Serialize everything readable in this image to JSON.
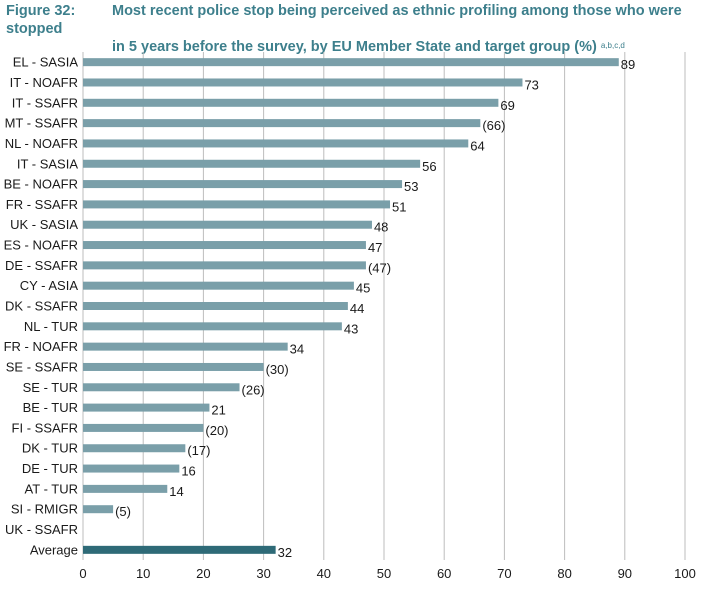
{
  "title": {
    "figure_label": "Figure 32:",
    "line1": "Most recent police stop being perceived as ethnic profiling among those who were stopped",
    "line2": "in 5 years before the survey, by EU Member State and target group (%)",
    "superscript": "a,b,c,d"
  },
  "chart_data": {
    "type": "bar",
    "orientation": "horizontal",
    "xlim": [
      0,
      100
    ],
    "x_ticks": [
      "0",
      "10",
      "20",
      "30",
      "40",
      "50",
      "60",
      "70",
      "80",
      "90",
      "100"
    ],
    "grid": "vertical",
    "colors": {
      "bar": "#7a9fa9",
      "average_bar": "#2e6a77"
    },
    "categories": [
      "EL - SASIA",
      "IT - NOAFR",
      "IT - SSAFR",
      "MT - SSAFR",
      "NL - NOAFR",
      "IT - SASIA",
      "BE - NOAFR",
      "FR - SSAFR",
      "UK - SASIA",
      "ES - NOAFR",
      "DE - SSAFR",
      "CY - ASIA",
      "DK - SSAFR",
      "NL - TUR",
      "FR - NOAFR",
      "SE - SSAFR",
      "SE - TUR",
      "BE - TUR",
      "FI - SSAFR",
      "DK - TUR",
      "DE - TUR",
      "AT - TUR",
      "SI - RMIGR",
      "UK - SSAFR",
      "Average"
    ],
    "values": [
      89,
      73,
      69,
      66,
      64,
      56,
      53,
      51,
      48,
      47,
      47,
      45,
      44,
      43,
      34,
      30,
      26,
      21,
      20,
      17,
      16,
      14,
      5,
      null,
      32
    ],
    "labels": [
      "89",
      "73",
      "69",
      "(66)",
      "64",
      "56",
      "53",
      "51",
      "48",
      "47",
      "(47)",
      "45",
      "44",
      "43",
      "34",
      "(30)",
      "(26)",
      "21",
      "(20)",
      "(17)",
      "16",
      "14",
      "(5)",
      "",
      "32"
    ]
  }
}
